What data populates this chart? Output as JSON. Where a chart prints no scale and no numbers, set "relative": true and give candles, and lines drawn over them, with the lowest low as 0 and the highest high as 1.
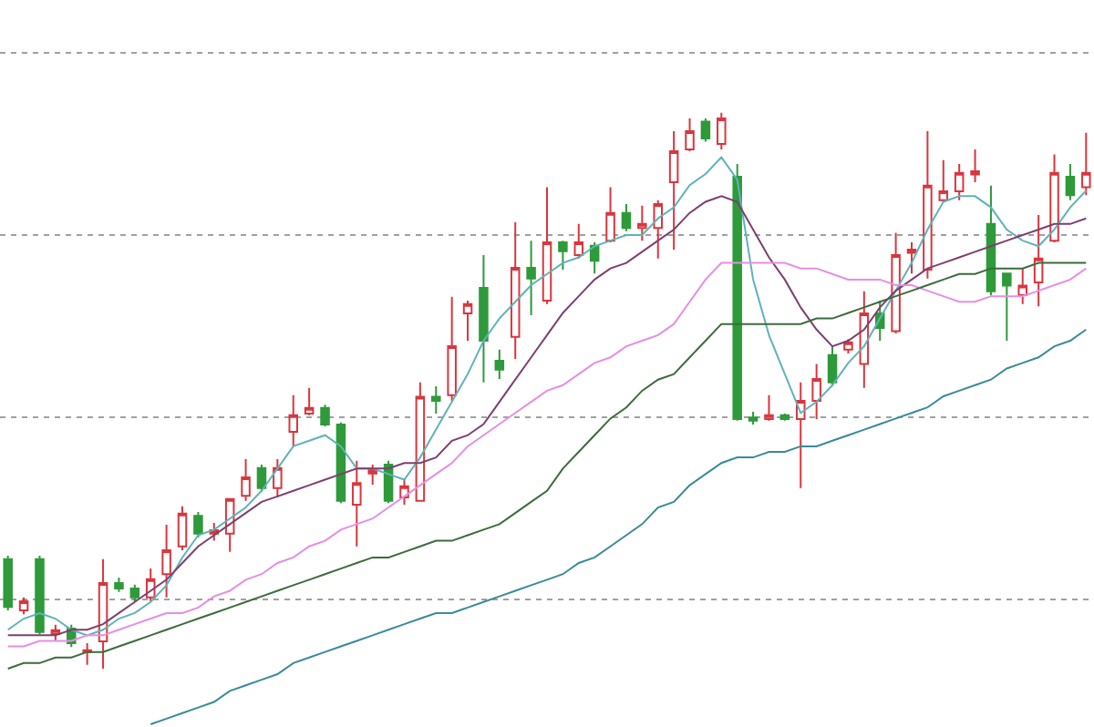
{
  "chart_data": {
    "type": "candlestick",
    "relative": true,
    "grid": "y",
    "categories": [
      null,
      null,
      null,
      null,
      null,
      null,
      null,
      null,
      null,
      null,
      null,
      null,
      null,
      null,
      null,
      null,
      null,
      null,
      null,
      null,
      null,
      null,
      null,
      null,
      null,
      null,
      null,
      null,
      null,
      null,
      null,
      null,
      null,
      null,
      null,
      null,
      null,
      null,
      null,
      null,
      null,
      null,
      null,
      null,
      null,
      null,
      null,
      null,
      null,
      null,
      null,
      null,
      null,
      null,
      null,
      null,
      null,
      null,
      null,
      null,
      null,
      null,
      null,
      null,
      null,
      null,
      null,
      null,
      null
    ],
    "colors": [
      "#2e9a3a",
      "#d9363e",
      "#2e9a3a",
      "#d9363e",
      "#2e9a3a",
      "#d9363e",
      "#d9363e",
      "#2e9a3a",
      "#2e9a3a",
      "#d9363e",
      "#d9363e",
      "#d9363e",
      "#2e9a3a",
      "#d9363e",
      "#d9363e",
      "#d9363e",
      "#2e9a3a",
      "#d9363e",
      "#d9363e",
      "#d9363e",
      "#2e9a3a",
      "#2e9a3a",
      "#d9363e",
      "#d9363e",
      "#2e9a3a",
      "#d9363e",
      "#d9363e",
      "#2e9a3a",
      "#d9363e",
      "#d9363e",
      "#2e9a3a",
      "#2e9a3a",
      "#d9363e",
      "#2e9a3a",
      "#d9363e",
      "#2e9a3a",
      "#d9363e",
      "#2e9a3a",
      "#d9363e",
      "#2e9a3a",
      "#d9363e",
      "#d9363e",
      "#d9363e",
      "#d9363e",
      "#2e9a3a",
      "#d9363e",
      "#2e9a3a",
      "#2e9a3a",
      "#d9363e",
      "#2e9a3a",
      "#d9363e",
      "#d9363e",
      "#2e9a3a",
      "#d9363e",
      "#d9363e",
      "#2e9a3a",
      "#d9363e",
      "#d9363e",
      "#d9363e",
      "#d9363e",
      "#d9363e",
      "#d9363e",
      "#2e9a3a",
      "#2e9a3a",
      "#d9363e",
      "#d9363e",
      "#d9363e",
      "#2e9a3a",
      "#d9363e"
    ],
    "ohlc": [
      [
        0.197,
        0.203,
        0.105,
        0.111
      ],
      [
        0.105,
        0.128,
        0.098,
        0.121
      ],
      [
        0.197,
        0.203,
        0.062,
        0.066
      ],
      [
        0.062,
        0.079,
        0.049,
        0.069
      ],
      [
        0.072,
        0.079,
        0.039,
        0.046
      ],
      [
        0.03,
        0.046,
        0.007,
        0.033
      ],
      [
        0.049,
        0.197,
        0,
        0.154
      ],
      [
        0.154,
        0.164,
        0.138,
        0.144
      ],
      [
        0.144,
        0.151,
        0.121,
        0.128
      ],
      [
        0.128,
        0.18,
        0.121,
        0.161
      ],
      [
        0.17,
        0.259,
        0.128,
        0.213
      ],
      [
        0.22,
        0.292,
        0.213,
        0.279
      ],
      [
        0.275,
        0.282,
        0.236,
        0.243
      ],
      [
        0.243,
        0.262,
        0.23,
        0.249
      ],
      [
        0.243,
        0.305,
        0.21,
        0.305
      ],
      [
        0.311,
        0.377,
        0.302,
        0.344
      ],
      [
        0.361,
        0.367,
        0.318,
        0.325
      ],
      [
        0.325,
        0.377,
        0.308,
        0.361
      ],
      [
        0.426,
        0.492,
        0.4,
        0.456
      ],
      [
        0.459,
        0.505,
        0.456,
        0.469
      ],
      [
        0.469,
        0.475,
        0.436,
        0.439
      ],
      [
        0.439,
        0.443,
        0.298,
        0.302
      ],
      [
        0.295,
        0.374,
        0.22,
        0.334
      ],
      [
        0.351,
        0.367,
        0.331,
        0.357
      ],
      [
        0.367,
        0.374,
        0.298,
        0.302
      ],
      [
        0.308,
        0.341,
        0.295,
        0.328
      ],
      [
        0.302,
        0.515,
        0.302,
        0.489
      ],
      [
        0.489,
        0.508,
        0.459,
        0.482
      ],
      [
        0.492,
        0.669,
        0.482,
        0.58
      ],
      [
        0.639,
        0.662,
        0.59,
        0.656
      ],
      [
        0.685,
        0.744,
        0.515,
        0.59
      ],
      [
        0.554,
        0.574,
        0.521,
        0.538
      ],
      [
        0.597,
        0.803,
        0.557,
        0.721
      ],
      [
        0.721,
        0.77,
        0.636,
        0.702
      ],
      [
        0.662,
        0.866,
        0.656,
        0.767
      ],
      [
        0.767,
        0.77,
        0.718,
        0.751
      ],
      [
        0.744,
        0.8,
        0.738,
        0.767
      ],
      [
        0.761,
        0.767,
        0.711,
        0.734
      ],
      [
        0.77,
        0.866,
        0.767,
        0.82
      ],
      [
        0.82,
        0.836,
        0.787,
        0.793
      ],
      [
        0.793,
        0.833,
        0.77,
        0.8
      ],
      [
        0.793,
        0.843,
        0.738,
        0.836
      ],
      [
        0.875,
        0.967,
        0.754,
        0.931
      ],
      [
        0.934,
        0.99,
        0.931,
        0.967
      ],
      [
        0.984,
        0.99,
        0.948,
        0.954
      ],
      [
        0.944,
        1,
        0.934,
        0.99
      ],
      [
        0.885,
        0.908,
        0.446,
        0.449
      ],
      [
        0.452,
        0.462,
        0.439,
        0.446
      ],
      [
        0.449,
        0.492,
        0.446,
        0.456
      ],
      [
        0.456,
        0.459,
        0.446,
        0.449
      ],
      [
        0.449,
        0.515,
        0.325,
        0.482
      ],
      [
        0.482,
        0.548,
        0.449,
        0.521
      ],
      [
        0.564,
        0.58,
        0.508,
        0.515
      ],
      [
        0.574,
        0.593,
        0.567,
        0.587
      ],
      [
        0.548,
        0.679,
        0.505,
        0.639
      ],
      [
        0.639,
        0.662,
        0.59,
        0.613
      ],
      [
        0.607,
        0.784,
        0.603,
        0.744
      ],
      [
        0.748,
        0.767,
        0.711,
        0.754
      ],
      [
        0.718,
        0.967,
        0.702,
        0.869
      ],
      [
        0.843,
        0.915,
        0.839,
        0.859
      ],
      [
        0.859,
        0.908,
        0.843,
        0.892
      ],
      [
        0.889,
        0.934,
        0.875,
        0.895
      ],
      [
        0.8,
        0.869,
        0.672,
        0.679
      ],
      [
        0.711,
        0.711,
        0.59,
        0.689
      ],
      [
        0.672,
        0.721,
        0.656,
        0.689
      ],
      [
        0.695,
        0.816,
        0.652,
        0.738
      ],
      [
        0.77,
        0.925,
        0.767,
        0.892
      ],
      [
        0.885,
        0.908,
        0.843,
        0.852
      ],
      [
        0.866,
        0.964,
        0.852,
        0.892
      ]
    ],
    "series": [
      {
        "type": "line",
        "color": "#5fb3b8",
        "values": [
          0.07,
          0.09,
          0.1,
          0.09,
          0.07,
          0.06,
          0.07,
          0.09,
          0.1,
          0.12,
          0.15,
          0.2,
          0.24,
          0.25,
          0.27,
          0.29,
          0.32,
          0.36,
          0.4,
          0.41,
          0.42,
          0.4,
          0.36,
          0.36,
          0.35,
          0.34,
          0.38,
          0.43,
          0.48,
          0.53,
          0.59,
          0.63,
          0.66,
          0.69,
          0.71,
          0.73,
          0.74,
          0.76,
          0.77,
          0.78,
          0.78,
          0.81,
          0.83,
          0.87,
          0.89,
          0.92,
          0.88,
          0.7,
          0.6,
          0.53,
          0.46,
          0.48,
          0.51,
          0.55,
          0.58,
          0.63,
          0.68,
          0.73,
          0.79,
          0.84,
          0.85,
          0.85,
          0.83,
          0.79,
          0.77,
          0.76,
          0.79,
          0.83,
          0.86
        ]
      },
      {
        "type": "line",
        "color": "#7d3f70",
        "values": [
          0.06,
          0.06,
          0.06,
          0.06,
          0.07,
          0.07,
          0.08,
          0.1,
          0.12,
          0.14,
          0.16,
          0.19,
          0.22,
          0.24,
          0.26,
          0.28,
          0.3,
          0.31,
          0.32,
          0.33,
          0.34,
          0.35,
          0.36,
          0.36,
          0.36,
          0.37,
          0.37,
          0.38,
          0.41,
          0.42,
          0.44,
          0.48,
          0.52,
          0.56,
          0.6,
          0.64,
          0.67,
          0.7,
          0.72,
          0.73,
          0.75,
          0.77,
          0.79,
          0.82,
          0.84,
          0.85,
          0.84,
          0.79,
          0.74,
          0.7,
          0.65,
          0.61,
          0.58,
          0.59,
          0.61,
          0.65,
          0.68,
          0.7,
          0.72,
          0.73,
          0.74,
          0.75,
          0.76,
          0.77,
          0.78,
          0.79,
          0.8,
          0.8,
          0.81
        ]
      },
      {
        "type": "line",
        "color": "#e58ee5",
        "values": [
          0.04,
          0.04,
          0.05,
          0.05,
          0.05,
          0.06,
          0.06,
          0.07,
          0.08,
          0.09,
          0.1,
          0.1,
          0.11,
          0.13,
          0.14,
          0.16,
          0.17,
          0.19,
          0.2,
          0.22,
          0.23,
          0.25,
          0.26,
          0.27,
          0.29,
          0.31,
          0.33,
          0.35,
          0.37,
          0.4,
          0.42,
          0.44,
          0.46,
          0.48,
          0.5,
          0.51,
          0.53,
          0.55,
          0.56,
          0.58,
          0.59,
          0.6,
          0.62,
          0.66,
          0.7,
          0.73,
          0.73,
          0.73,
          0.73,
          0.73,
          0.72,
          0.72,
          0.71,
          0.7,
          0.7,
          0.7,
          0.69,
          0.69,
          0.68,
          0.67,
          0.66,
          0.66,
          0.67,
          0.67,
          0.67,
          0.68,
          0.69,
          0.7,
          0.72
        ]
      },
      {
        "type": "line",
        "color": "#3d6b3d",
        "values": [
          0,
          0.01,
          0.01,
          0.02,
          0.02,
          0.03,
          0.03,
          0.04,
          0.05,
          0.06,
          0.07,
          0.08,
          0.09,
          0.1,
          0.11,
          0.12,
          0.13,
          0.14,
          0.15,
          0.16,
          0.17,
          0.18,
          0.19,
          0.2,
          0.2,
          0.21,
          0.22,
          0.23,
          0.23,
          0.24,
          0.25,
          0.26,
          0.28,
          0.3,
          0.32,
          0.36,
          0.39,
          0.42,
          0.45,
          0.47,
          0.5,
          0.52,
          0.53,
          0.56,
          0.59,
          0.62,
          0.62,
          0.62,
          0.62,
          0.62,
          0.62,
          0.63,
          0.63,
          0.64,
          0.65,
          0.66,
          0.67,
          0.68,
          0.69,
          0.7,
          0.71,
          0.71,
          0.72,
          0.72,
          0.72,
          0.73,
          0.73,
          0.73,
          0.73
        ]
      },
      {
        "type": "line",
        "color": "#3a8a9a",
        "values": [
          null,
          null,
          null,
          null,
          null,
          null,
          null,
          null,
          null,
          -0.1,
          -0.09,
          -0.08,
          -0.07,
          -0.06,
          -0.04,
          -0.03,
          -0.02,
          -0.01,
          0.01,
          0.02,
          0.03,
          0.04,
          0.05,
          0.06,
          0.07,
          0.08,
          0.09,
          0.1,
          0.1,
          0.11,
          0.12,
          0.13,
          0.14,
          0.15,
          0.16,
          0.17,
          0.19,
          0.2,
          0.22,
          0.24,
          0.26,
          0.29,
          0.3,
          0.33,
          0.35,
          0.37,
          0.38,
          0.38,
          0.39,
          0.39,
          0.4,
          0.4,
          0.41,
          0.42,
          0.43,
          0.44,
          0.45,
          0.46,
          0.47,
          0.49,
          0.5,
          0.51,
          0.52,
          0.54,
          0.55,
          0.56,
          0.58,
          0.59,
          0.61
        ]
      }
    ]
  }
}
